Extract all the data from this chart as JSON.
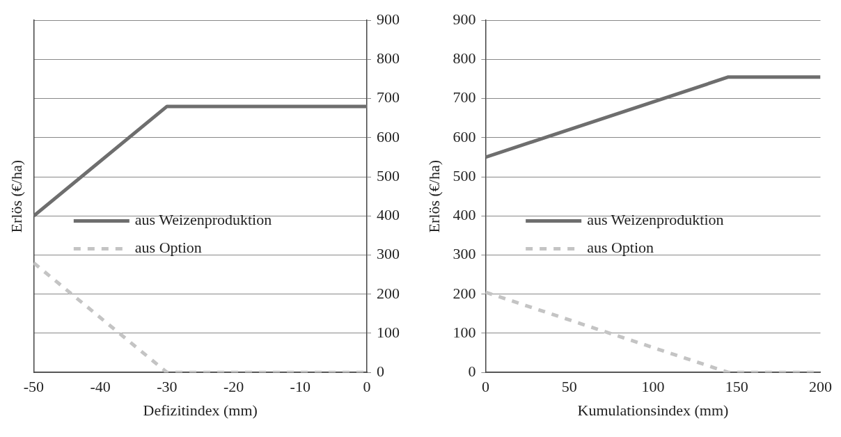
{
  "chart_data": [
    {
      "type": "line",
      "xlabel": "Defizitindex (mm)",
      "ylabel": "Erlös (€/ha)",
      "xlim": [
        -50,
        0
      ],
      "xticks": [
        -50,
        -40,
        -30,
        -20,
        -10,
        0
      ],
      "y2lim": [
        0,
        900
      ],
      "y2ticks": [
        0,
        100,
        200,
        300,
        400,
        500,
        600,
        700,
        800,
        900
      ],
      "grid": "y",
      "legend": "left",
      "marker": "none",
      "series": [
        {
          "name": "aus Weizenproduktion",
          "color": "#6e6e6e",
          "line_style": "solid",
          "axis": "y2",
          "x": [
            -50,
            -30,
            0
          ],
          "values": [
            400,
            680,
            680
          ]
        },
        {
          "name": "aus Option",
          "color": "#c4c4c4",
          "line_style": "dashed",
          "axis": "y2",
          "x": [
            -50,
            -30,
            0
          ],
          "values": [
            280,
            0,
            0
          ]
        }
      ]
    },
    {
      "type": "line",
      "xlabel": "Kumulationsindex (mm)",
      "ylabel": "Erlös (€/ha)",
      "xlim": [
        0,
        200
      ],
      "xticks": [
        0,
        50,
        100,
        150,
        200
      ],
      "ylim": [
        0,
        900
      ],
      "yticks": [
        0,
        100,
        200,
        300,
        400,
        500,
        600,
        700,
        800,
        900
      ],
      "grid": "y",
      "legend": "left",
      "marker": "none",
      "series": [
        {
          "name": "aus Weizenproduktion",
          "color": "#6e6e6e",
          "line_style": "solid",
          "x": [
            0,
            145,
            200
          ],
          "values": [
            550,
            755,
            755
          ]
        },
        {
          "name": "aus Option",
          "color": "#c4c4c4",
          "line_style": "dashed",
          "x": [
            0,
            145,
            200
          ],
          "values": [
            205,
            0,
            0
          ]
        }
      ]
    }
  ]
}
